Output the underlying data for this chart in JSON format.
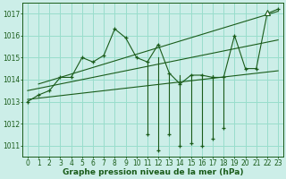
{
  "title": "Graphe pression niveau de la mer (hPa)",
  "bg_color": "#cceee8",
  "grid_color": "#99ddcc",
  "line_color": "#1a5c1a",
  "xlim": [
    -0.5,
    23.5
  ],
  "ylim": [
    1010.5,
    1017.5
  ],
  "yticks": [
    1011,
    1012,
    1013,
    1014,
    1015,
    1016,
    1017
  ],
  "xticks": [
    0,
    1,
    2,
    3,
    4,
    5,
    6,
    7,
    8,
    9,
    10,
    11,
    12,
    13,
    14,
    15,
    16,
    17,
    18,
    19,
    20,
    21,
    22,
    23
  ],
  "pressure_data": [
    1013.0,
    1013.3,
    1013.5,
    1014.1,
    1014.1,
    1015.0,
    1014.8,
    1015.1,
    1016.3,
    1015.9,
    1015.0,
    1014.8,
    1015.6,
    1014.3,
    1013.8,
    1014.2,
    1014.2,
    1014.1,
    1014.1,
    1016.0,
    1014.5,
    1014.5,
    1017.0,
    1017.2
  ],
  "below_data": [
    null,
    null,
    null,
    null,
    null,
    null,
    null,
    null,
    null,
    null,
    null,
    1011.3,
    1010.8,
    1011.5,
    1011.1,
    1011.3,
    1011.1,
    1011.4,
    1011.7,
    null,
    null,
    null,
    null,
    null
  ],
  "trend1_x": [
    0,
    23
  ],
  "trend1_y": [
    1013.1,
    1014.4
  ],
  "trend2_x": [
    0,
    23
  ],
  "trend2_y": [
    1013.5,
    1015.8
  ],
  "trend3_x": [
    1,
    23
  ],
  "trend3_y": [
    1013.8,
    1017.1
  ],
  "triangle_x": 22,
  "triangle_y": 1017.05,
  "tick_fontsize": 5.5,
  "xlabel_fontsize": 6.5
}
